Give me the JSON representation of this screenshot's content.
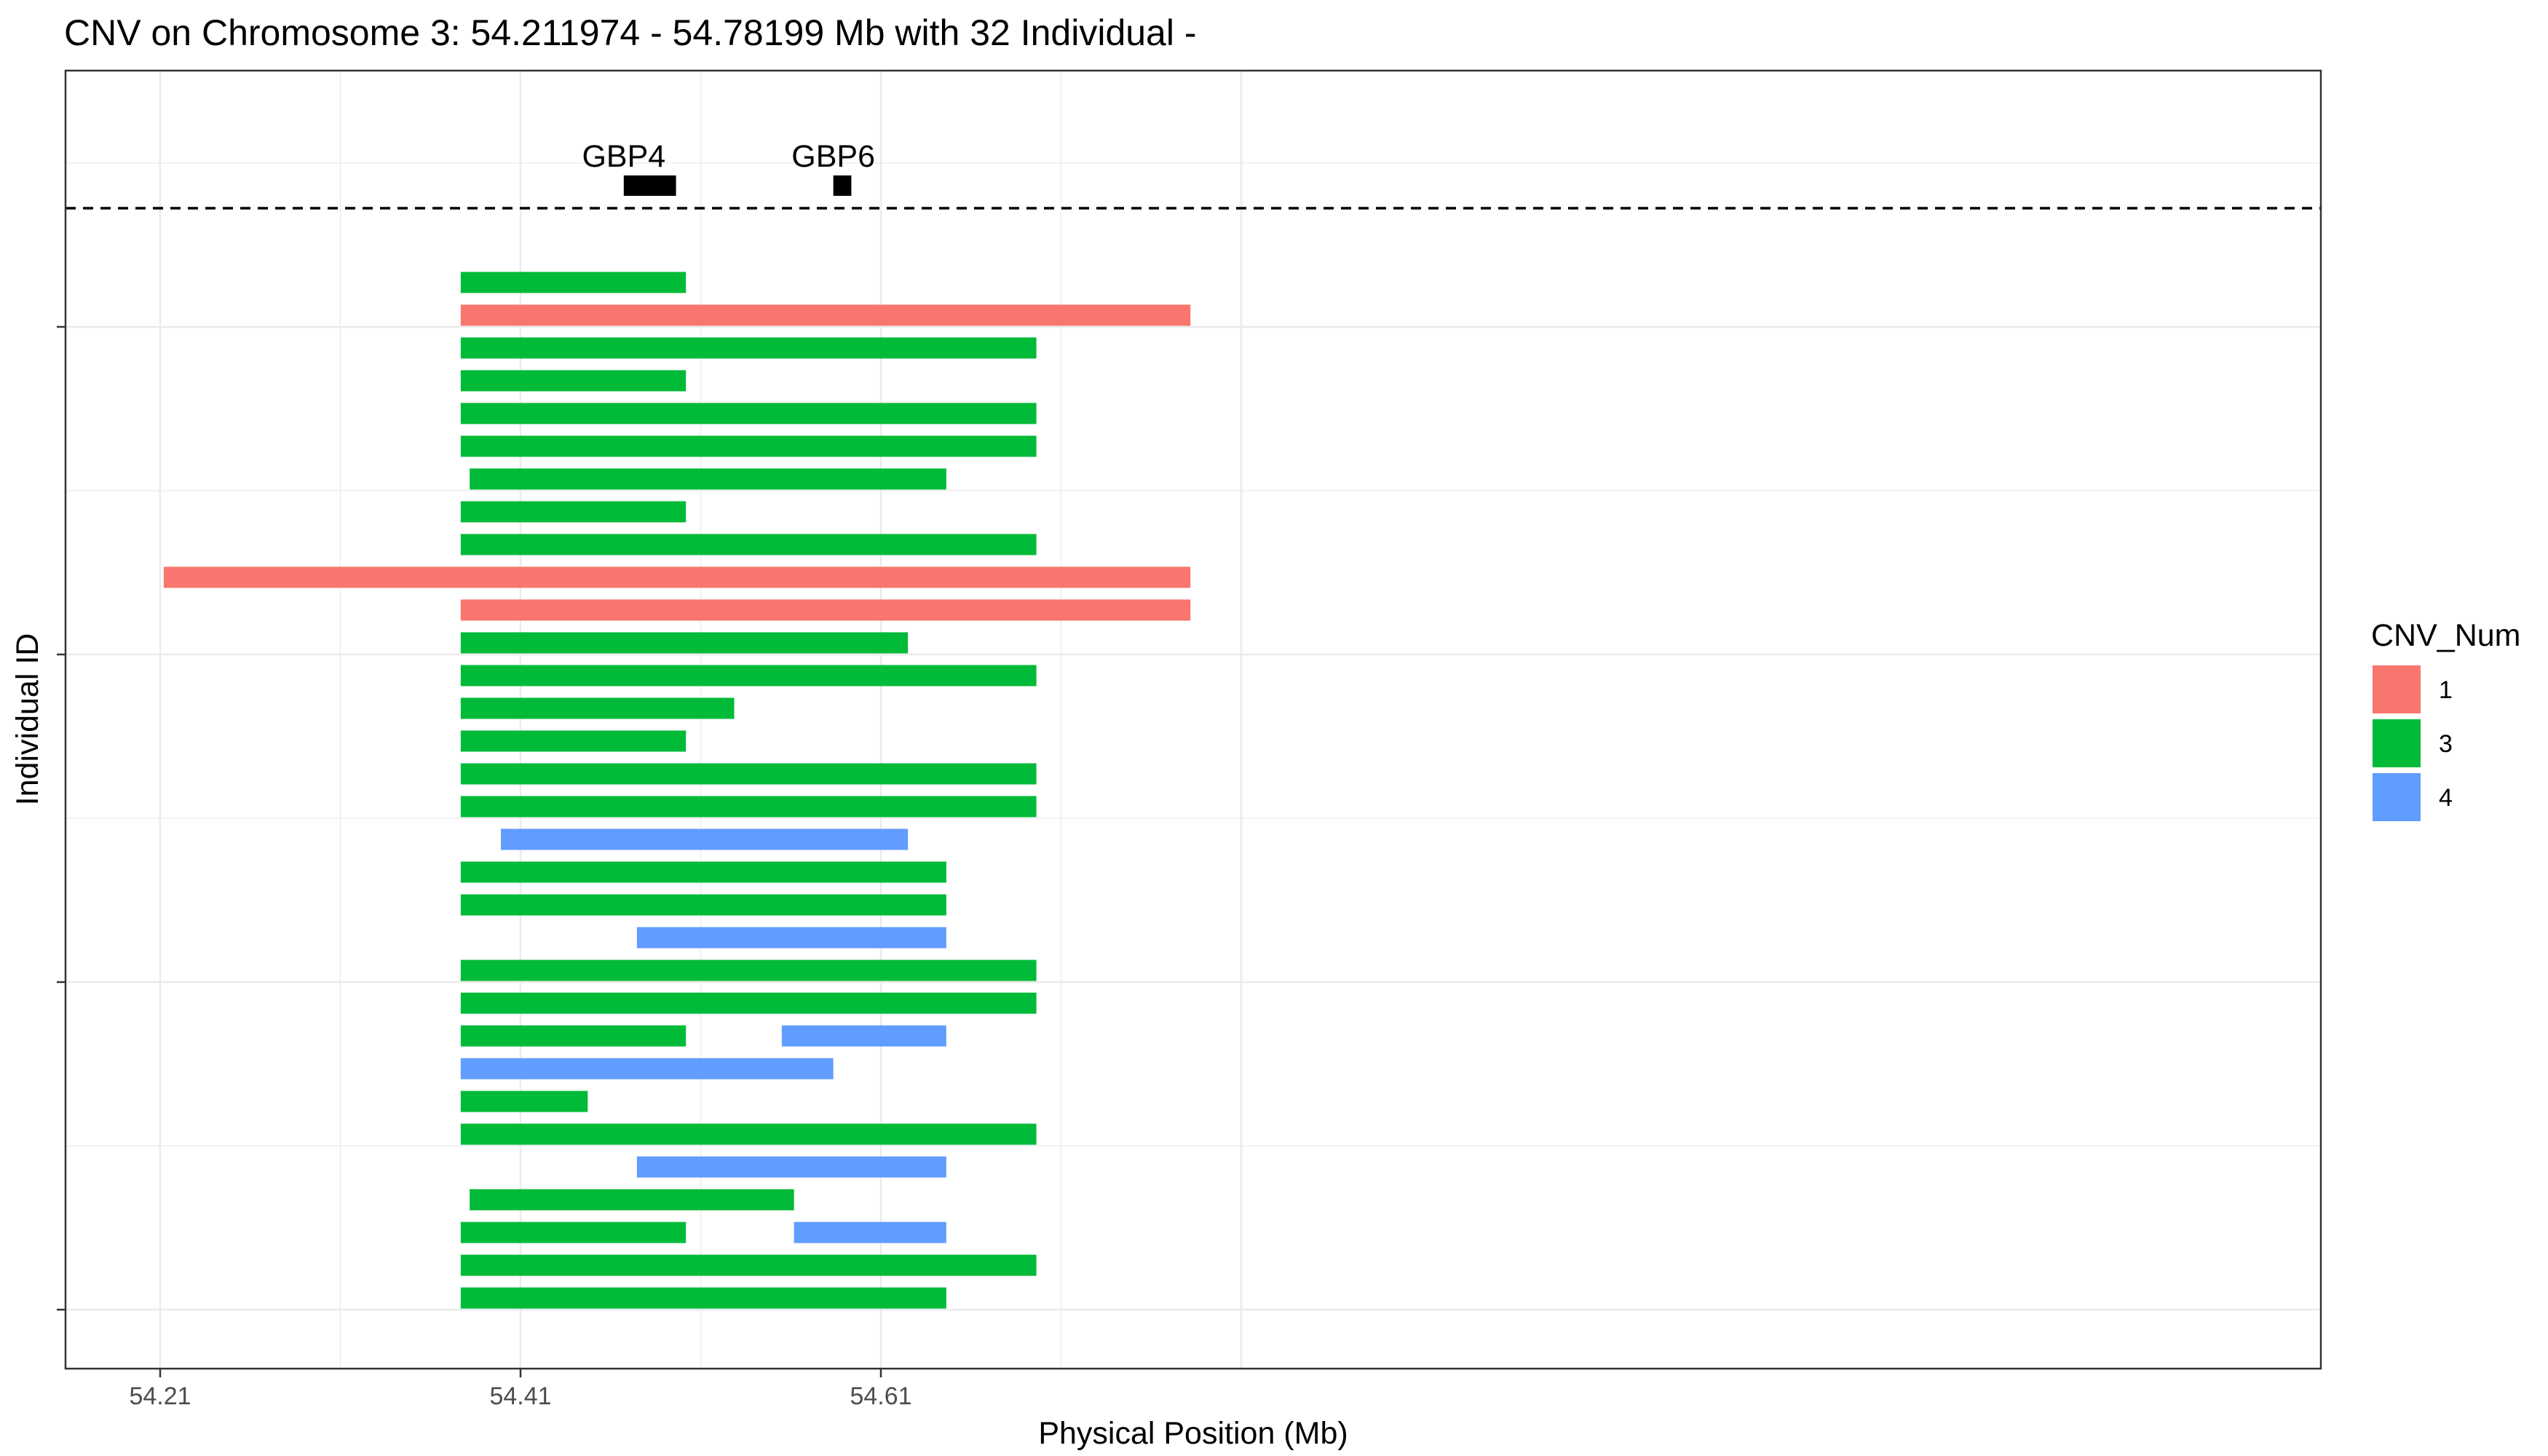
{
  "chart_data": {
    "type": "bar",
    "orientation": "horizontal-segments",
    "title": "CNV on Chromosome 3: 54.211974 - 54.78199 Mb with 32 Individual -",
    "xlabel": "Physical Position (Mb)",
    "ylabel": "Individual ID",
    "xlim": [
      54.21,
      54.78
    ],
    "x_ticks": [
      "54.21",
      "54.41",
      "54.61"
    ],
    "x_tick_values": [
      54.21,
      54.41,
      54.61
    ],
    "grid": true,
    "legend": {
      "title": "CNV_Num",
      "placement": "right",
      "entries": [
        {
          "label": "1",
          "color": "#F8766D"
        },
        {
          "label": "3",
          "color": "#00BA38"
        },
        {
          "label": "4",
          "color": "#619CFF"
        }
      ]
    },
    "genes": [
      {
        "name": "GBP4",
        "start": 54.4673,
        "end": 54.4963
      },
      {
        "name": "GBP6",
        "start": 54.5836,
        "end": 54.5936
      }
    ],
    "segments": [
      {
        "row": 1,
        "start": 54.3768,
        "end": 54.5018,
        "cnv": "3"
      },
      {
        "row": 2,
        "start": 54.3768,
        "end": 54.7818,
        "cnv": "1"
      },
      {
        "row": 3,
        "start": 54.3768,
        "end": 54.6963,
        "cnv": "3"
      },
      {
        "row": 4,
        "start": 54.3768,
        "end": 54.5018,
        "cnv": "3"
      },
      {
        "row": 5,
        "start": 54.3768,
        "end": 54.6963,
        "cnv": "3"
      },
      {
        "row": 6,
        "start": 54.3768,
        "end": 54.6963,
        "cnv": "3"
      },
      {
        "row": 7,
        "start": 54.3818,
        "end": 54.6463,
        "cnv": "3"
      },
      {
        "row": 8,
        "start": 54.3768,
        "end": 54.5018,
        "cnv": "3"
      },
      {
        "row": 9,
        "start": 54.3768,
        "end": 54.6963,
        "cnv": "3"
      },
      {
        "row": 10,
        "start": 54.212,
        "end": 54.7818,
        "cnv": "1"
      },
      {
        "row": 11,
        "start": 54.3768,
        "end": 54.7818,
        "cnv": "1"
      },
      {
        "row": 12,
        "start": 54.3768,
        "end": 54.625,
        "cnv": "3"
      },
      {
        "row": 13,
        "start": 54.3768,
        "end": 54.6963,
        "cnv": "3"
      },
      {
        "row": 14,
        "start": 54.3768,
        "end": 54.5286,
        "cnv": "3"
      },
      {
        "row": 15,
        "start": 54.3768,
        "end": 54.5018,
        "cnv": "3"
      },
      {
        "row": 16,
        "start": 54.3768,
        "end": 54.6963,
        "cnv": "3"
      },
      {
        "row": 17,
        "start": 54.3768,
        "end": 54.6963,
        "cnv": "3"
      },
      {
        "row": 18,
        "start": 54.3991,
        "end": 54.625,
        "cnv": "4"
      },
      {
        "row": 19,
        "start": 54.3768,
        "end": 54.6463,
        "cnv": "3"
      },
      {
        "row": 20,
        "start": 54.3768,
        "end": 54.6463,
        "cnv": "3"
      },
      {
        "row": 21,
        "start": 54.4746,
        "end": 54.6463,
        "cnv": "4"
      },
      {
        "row": 22,
        "start": 54.3768,
        "end": 54.6963,
        "cnv": "3"
      },
      {
        "row": 23,
        "start": 54.3768,
        "end": 54.6963,
        "cnv": "3"
      },
      {
        "row": 24,
        "start": 54.3768,
        "end": 54.5018,
        "cnv": "3"
      },
      {
        "row": 24,
        "start": 54.555,
        "end": 54.6463,
        "cnv": "4"
      },
      {
        "row": 25,
        "start": 54.3768,
        "end": 54.5836,
        "cnv": "4"
      },
      {
        "row": 26,
        "start": 54.3768,
        "end": 54.4473,
        "cnv": "3"
      },
      {
        "row": 27,
        "start": 54.3768,
        "end": 54.6963,
        "cnv": "3"
      },
      {
        "row": 28,
        "start": 54.4746,
        "end": 54.6463,
        "cnv": "4"
      },
      {
        "row": 29,
        "start": 54.3818,
        "end": 54.5618,
        "cnv": "3"
      },
      {
        "row": 30,
        "start": 54.3768,
        "end": 54.5018,
        "cnv": "3"
      },
      {
        "row": 30,
        "start": 54.5618,
        "end": 54.6463,
        "cnv": "4"
      },
      {
        "row": 31,
        "start": 54.3768,
        "end": 54.6963,
        "cnv": "3"
      },
      {
        "row": 32,
        "start": 54.3768,
        "end": 54.6463,
        "cnv": "3"
      }
    ]
  }
}
